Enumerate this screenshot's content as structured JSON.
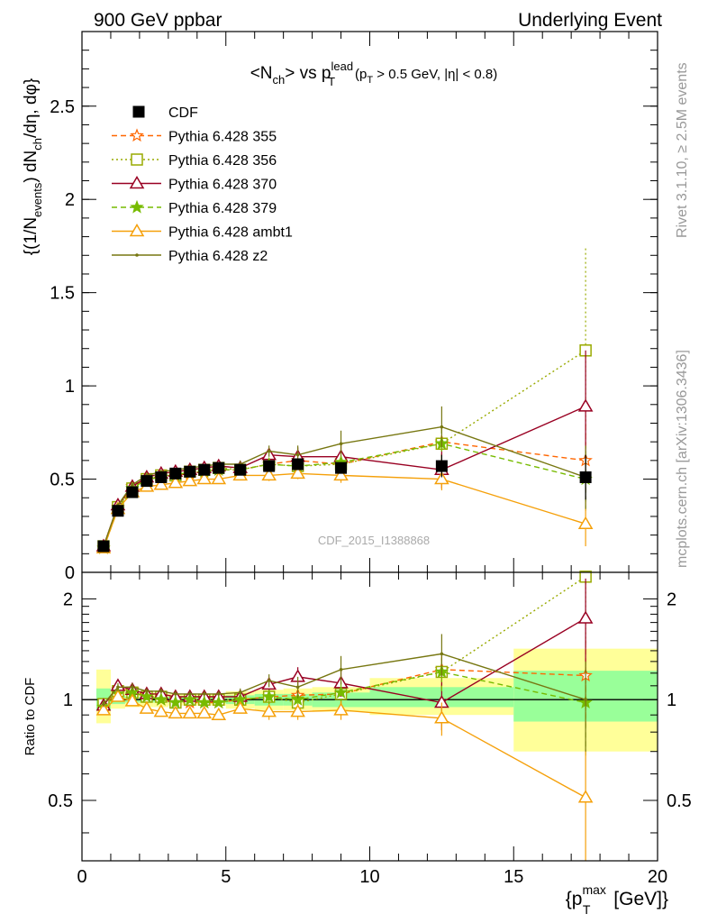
{
  "header": {
    "left": "900 GeV ppbar",
    "right": "Underlying Event"
  },
  "side_labels": {
    "rivet": "Rivet 3.1.10, ≥ 2.5M events",
    "mcplots": "mcplots.cern.ch [arXiv:1306.3436]"
  },
  "watermark": "CDF_2015_I1388868",
  "chart_data": [
    {
      "type": "line",
      "panel": "main",
      "title": {
        "nch_open": "<N",
        "nch_sub": "ch",
        "vs": "> vs p",
        "pt_sup": "lead",
        "pt_sub": "T",
        "cut_open": "(p",
        "cut_sub": "T",
        "cut_rest": " > 0.5 GeV, |η| < 0.8)"
      },
      "ylabel": "{(1/N_events) dN_ch/dη, dφ}",
      "ylabel_parts": {
        "a": "{(1/N",
        "a_sub": "events",
        "b": ") dN",
        "b_sub": "ch",
        "c": "/dη, dφ}"
      },
      "ylim": [
        0,
        2.9
      ],
      "yticks": [
        0,
        0.5,
        1,
        1.5,
        2,
        2.5
      ],
      "ytick_labels": [
        "0",
        "0.5",
        "1",
        "1.5",
        "2",
        "2.5"
      ],
      "x": [
        0.75,
        1.25,
        1.75,
        2.25,
        2.75,
        3.25,
        3.75,
        4.25,
        4.75,
        5.5,
        6.5,
        7.5,
        9.0,
        12.5,
        17.5
      ],
      "data": {
        "name": "CDF",
        "values": [
          0.14,
          0.33,
          0.43,
          0.49,
          0.51,
          0.53,
          0.54,
          0.55,
          0.56,
          0.55,
          0.57,
          0.58,
          0.56,
          0.57,
          0.51
        ],
        "errors": [
          0.01,
          0.01,
          0.01,
          0.01,
          0.01,
          0.01,
          0.01,
          0.01,
          0.01,
          0.01,
          0.02,
          0.02,
          0.03,
          0.06,
          0.12
        ]
      },
      "series": [
        {
          "name": "Pythia 6.428 355",
          "color": "#ff6600",
          "dash": "6,4",
          "marker": "star-open",
          "values": [
            0.13,
            0.35,
            0.46,
            0.5,
            0.51,
            0.52,
            0.53,
            0.54,
            0.55,
            0.55,
            0.58,
            0.6,
            0.58,
            0.7,
            0.6
          ],
          "errors": [
            0.01,
            0.01,
            0.01,
            0.01,
            0.01,
            0.01,
            0.01,
            0.01,
            0.01,
            0.02,
            0.03,
            0.04,
            0.05,
            0.09,
            0.22
          ]
        },
        {
          "name": "Pythia 6.428 356",
          "color": "#99aa00",
          "dash": "2,3",
          "marker": "square-open",
          "values": [
            0.14,
            0.35,
            0.45,
            0.5,
            0.52,
            0.52,
            0.54,
            0.55,
            0.56,
            0.55,
            0.58,
            0.57,
            0.58,
            0.69,
            1.19
          ],
          "errors": [
            0.01,
            0.01,
            0.01,
            0.01,
            0.01,
            0.01,
            0.01,
            0.01,
            0.01,
            0.02,
            0.03,
            0.04,
            0.05,
            0.09,
            0.55
          ]
        },
        {
          "name": "Pythia 6.428 370",
          "color": "#990022",
          "dash": "",
          "marker": "triangle-open",
          "values": [
            0.14,
            0.36,
            0.46,
            0.51,
            0.53,
            0.54,
            0.55,
            0.56,
            0.57,
            0.56,
            0.63,
            0.62,
            0.62,
            0.55,
            0.89
          ],
          "errors": [
            0.01,
            0.01,
            0.01,
            0.01,
            0.01,
            0.01,
            0.01,
            0.01,
            0.01,
            0.02,
            0.03,
            0.05,
            0.06,
            0.1,
            0.3
          ]
        },
        {
          "name": "Pythia 6.428 379",
          "color": "#77bb00",
          "dash": "6,4",
          "marker": "star-filled",
          "values": [
            0.13,
            0.34,
            0.45,
            0.5,
            0.51,
            0.52,
            0.54,
            0.54,
            0.55,
            0.55,
            0.58,
            0.57,
            0.59,
            0.69,
            0.5
          ],
          "errors": [
            0.01,
            0.01,
            0.01,
            0.01,
            0.01,
            0.01,
            0.01,
            0.01,
            0.01,
            0.02,
            0.03,
            0.04,
            0.05,
            0.09,
            0.17
          ]
        },
        {
          "name": "Pythia 6.428 ambt1",
          "color": "#f5a00a",
          "dash": "",
          "marker": "triangle-open",
          "values": [
            0.13,
            0.34,
            0.43,
            0.46,
            0.47,
            0.48,
            0.49,
            0.5,
            0.5,
            0.52,
            0.52,
            0.53,
            0.52,
            0.5,
            0.26
          ],
          "errors": [
            0.01,
            0.01,
            0.01,
            0.01,
            0.01,
            0.01,
            0.01,
            0.01,
            0.01,
            0.02,
            0.03,
            0.03,
            0.04,
            0.06,
            0.12
          ]
        },
        {
          "name": "Pythia 6.428 z2",
          "color": "#777711",
          "dash": "",
          "marker": "dot",
          "values": [
            0.14,
            0.36,
            0.47,
            0.52,
            0.54,
            0.55,
            0.56,
            0.57,
            0.58,
            0.58,
            0.65,
            0.63,
            0.69,
            0.78,
            0.51
          ],
          "errors": [
            0.01,
            0.01,
            0.01,
            0.01,
            0.01,
            0.01,
            0.01,
            0.01,
            0.01,
            0.02,
            0.03,
            0.05,
            0.07,
            0.11,
            0.17
          ]
        }
      ]
    },
    {
      "type": "line",
      "panel": "ratio",
      "ylabel": "Ratio to CDF",
      "xlabel": "{p_T^max [GeV]}",
      "xlabel_parts": {
        "a": "{p",
        "sup": "max",
        "sub": "T",
        "b": " [GeV]}"
      },
      "xlim": [
        0,
        20
      ],
      "xticks": [
        0,
        5,
        10,
        15,
        20
      ],
      "xtick_labels": [
        "0",
        "5",
        "10",
        "15",
        "20"
      ],
      "ylim": [
        0.33,
        2.4
      ],
      "log_scale": true,
      "yticks": [
        0.5,
        1,
        2
      ],
      "ytick_labels": [
        "0.5",
        "1",
        "2"
      ],
      "bins": [
        [
          0.5,
          1.0
        ],
        [
          1.0,
          1.5
        ],
        [
          1.5,
          2.0
        ],
        [
          2.0,
          2.5
        ],
        [
          2.5,
          3.0
        ],
        [
          3.0,
          3.5
        ],
        [
          3.5,
          4.0
        ],
        [
          4.0,
          4.5
        ],
        [
          4.5,
          5.0
        ],
        [
          5.0,
          6.0
        ],
        [
          6.0,
          7.0
        ],
        [
          7.0,
          8.0
        ],
        [
          8.0,
          10.0
        ],
        [
          10.0,
          15.0
        ],
        [
          15.0,
          20.0
        ]
      ],
      "band_stat": [
        [
          0.93,
          1.08
        ],
        [
          0.97,
          1.03
        ],
        [
          0.98,
          1.02
        ],
        [
          0.98,
          1.02
        ],
        [
          0.98,
          1.02
        ],
        [
          0.98,
          1.02
        ],
        [
          0.98,
          1.02
        ],
        [
          0.98,
          1.02
        ],
        [
          0.98,
          1.02
        ],
        [
          0.97,
          1.03
        ],
        [
          0.96,
          1.04
        ],
        [
          0.96,
          1.04
        ],
        [
          0.95,
          1.05
        ],
        [
          0.95,
          1.09
        ],
        [
          0.86,
          1.22
        ]
      ],
      "band_total": [
        [
          0.85,
          1.23
        ],
        [
          0.94,
          1.06
        ],
        [
          0.95,
          1.05
        ],
        [
          0.95,
          1.05
        ],
        [
          0.95,
          1.05
        ],
        [
          0.96,
          1.04
        ],
        [
          0.96,
          1.04
        ],
        [
          0.96,
          1.04
        ],
        [
          0.96,
          1.04
        ],
        [
          0.94,
          1.06
        ],
        [
          0.93,
          1.07
        ],
        [
          0.93,
          1.08
        ],
        [
          0.92,
          1.09
        ],
        [
          0.9,
          1.16
        ],
        [
          0.7,
          1.42
        ]
      ],
      "series": [
        {
          "name": "Pythia 6.428 355",
          "values": [
            0.95,
            1.07,
            1.07,
            1.02,
            1.0,
            0.98,
            0.98,
            0.98,
            0.98,
            1.0,
            1.02,
            1.03,
            1.04,
            1.23,
            1.18
          ]
        },
        {
          "name": "Pythia 6.428 356",
          "values": [
            0.97,
            1.06,
            1.05,
            1.02,
            1.02,
            0.98,
            1.0,
            1.0,
            1.0,
            1.0,
            1.02,
            0.98,
            1.04,
            1.21,
            2.33
          ]
        },
        {
          "name": "Pythia 6.428 370",
          "values": [
            0.96,
            1.1,
            1.07,
            1.04,
            1.04,
            1.02,
            1.02,
            1.02,
            1.02,
            1.02,
            1.11,
            1.17,
            1.12,
            0.98,
            1.75
          ]
        },
        {
          "name": "Pythia 6.428 379",
          "values": [
            0.95,
            1.04,
            1.05,
            1.02,
            1.0,
            0.98,
            1.0,
            0.98,
            0.98,
            1.0,
            1.02,
            1.0,
            1.05,
            1.21,
            0.98
          ]
        },
        {
          "name": "Pythia 6.428 ambt1",
          "values": [
            0.93,
            1.02,
            0.99,
            0.94,
            0.92,
            0.91,
            0.91,
            0.91,
            0.9,
            0.94,
            0.92,
            0.92,
            0.93,
            0.88,
            0.51
          ]
        },
        {
          "name": "Pythia 6.428 z2",
          "values": [
            0.97,
            1.09,
            1.09,
            1.06,
            1.06,
            1.04,
            1.04,
            1.04,
            1.04,
            1.05,
            1.14,
            1.09,
            1.23,
            1.37,
            1.0
          ]
        }
      ],
      "series_errors": [
        [
          0.02,
          0.03,
          0.03,
          0.02,
          0.02,
          0.02,
          0.02,
          0.02,
          0.02,
          0.03,
          0.05,
          0.06,
          0.08,
          0.15,
          0.35
        ],
        [
          0.02,
          0.03,
          0.03,
          0.02,
          0.02,
          0.02,
          0.02,
          0.02,
          0.02,
          0.03,
          0.05,
          0.06,
          0.08,
          0.15,
          0.9
        ],
        [
          0.02,
          0.03,
          0.03,
          0.02,
          0.02,
          0.02,
          0.02,
          0.02,
          0.02,
          0.03,
          0.05,
          0.08,
          0.1,
          0.17,
          0.55
        ],
        [
          0.02,
          0.03,
          0.03,
          0.02,
          0.02,
          0.02,
          0.02,
          0.02,
          0.02,
          0.03,
          0.05,
          0.06,
          0.08,
          0.15,
          0.3
        ],
        [
          0.02,
          0.03,
          0.03,
          0.02,
          0.02,
          0.02,
          0.02,
          0.02,
          0.02,
          0.03,
          0.05,
          0.05,
          0.06,
          0.1,
          0.2
        ],
        [
          0.02,
          0.03,
          0.03,
          0.02,
          0.02,
          0.02,
          0.02,
          0.02,
          0.02,
          0.03,
          0.05,
          0.08,
          0.12,
          0.2,
          0.3
        ]
      ]
    }
  ],
  "colors": {
    "band_stat": "#99ff99",
    "band_total": "#ffff99",
    "cdf": "#000000"
  }
}
